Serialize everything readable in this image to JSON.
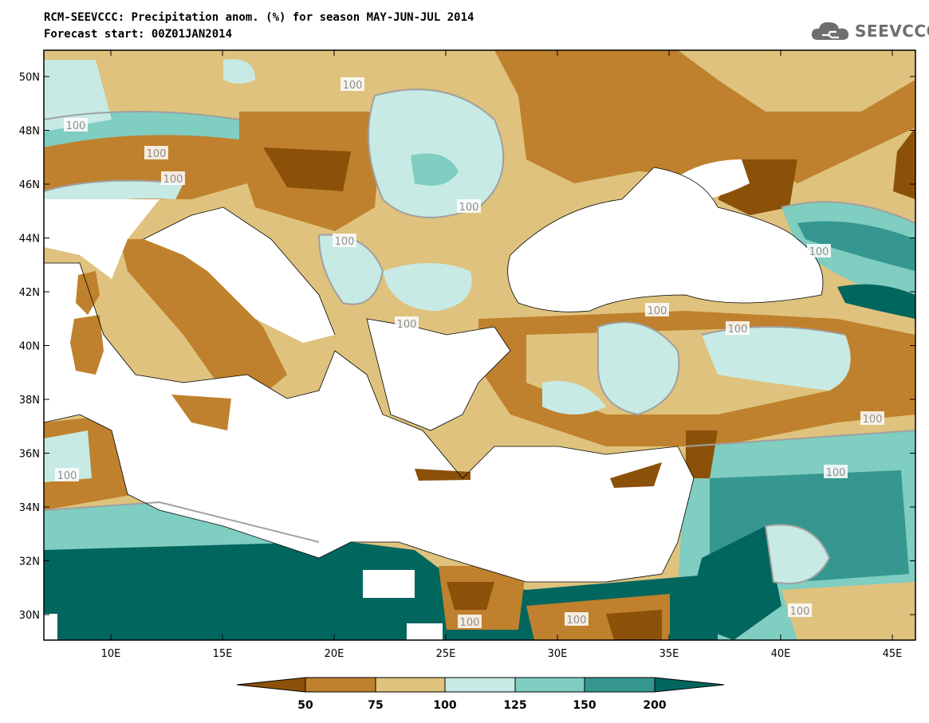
{
  "header": {
    "title_line1": "RCM-SEEVCCC: Precipitation anom. (%) for season MAY-JUN-JUL 2014",
    "title_line2": "Forecast start: 00Z01JAN2014",
    "logo_text": "SEEVCCC"
  },
  "axes": {
    "lat_labels": [
      "50N",
      "48N",
      "46N",
      "44N",
      "42N",
      "40N",
      "38N",
      "36N",
      "34N",
      "32N",
      "30N"
    ],
    "lon_labels": [
      "10E",
      "15E",
      "20E",
      "25E",
      "30E",
      "35E",
      "40E",
      "45E"
    ]
  },
  "contour_label": "100",
  "colorbar": {
    "labels": [
      "50",
      "75",
      "100",
      "125",
      "150",
      "200"
    ],
    "colors": [
      "#8c5109",
      "#bf812d",
      "#dfc27d",
      "#c7eae5",
      "#80cdc1",
      "#35978f",
      "#01665e"
    ]
  },
  "colors": {
    "land_default": "#dfc27d",
    "sea": "#ffffff",
    "contour_line": "#a0a0a0"
  }
}
